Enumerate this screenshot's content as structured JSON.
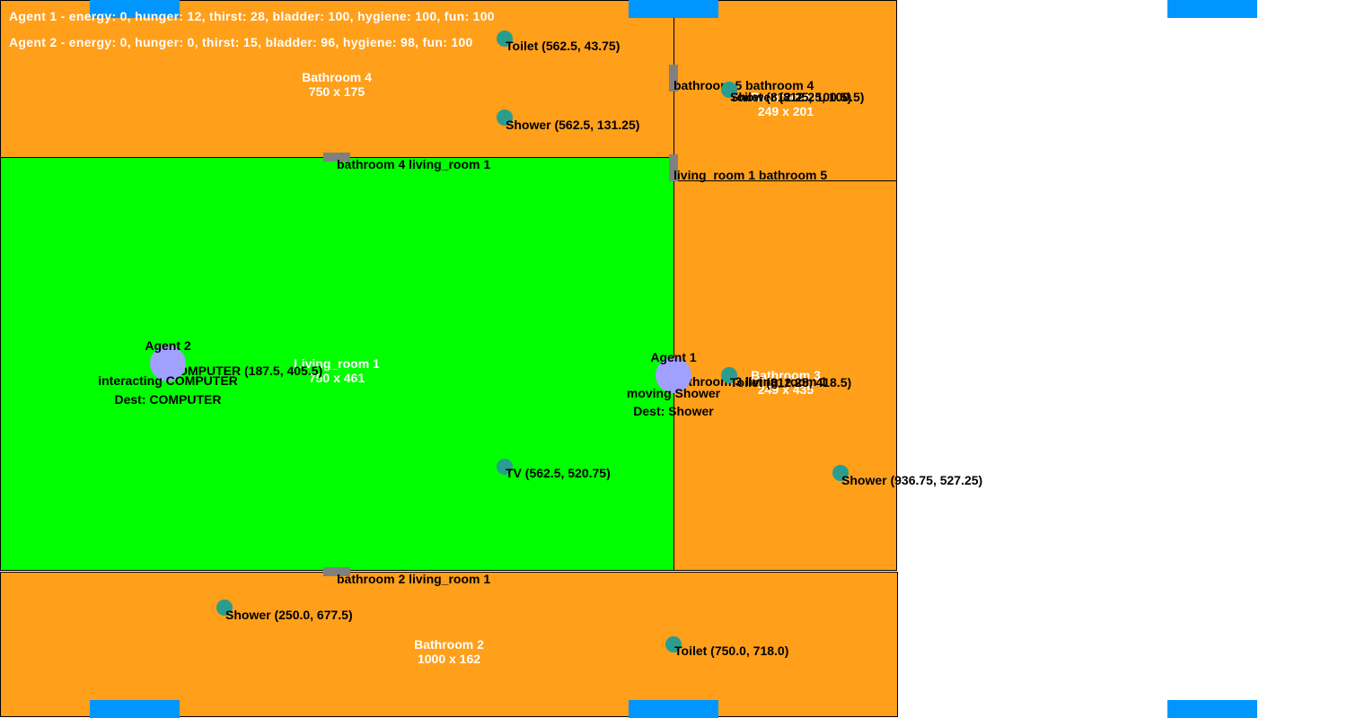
{
  "colors": {
    "bathroom": "#ff9f1a",
    "living_room": "#00ff00",
    "object": "#2a9d8f",
    "agent": "#a0a0ff",
    "door": "#808080",
    "window": "#0096ff"
  },
  "status": {
    "agent1": "Agent 1 - energy: 0, hunger: 12, thirst: 28, bladder: 100, hygiene: 100, fun: 100",
    "agent2": "Agent 2 - energy: 0, hunger: 0, thirst: 15, bladder: 96, hygiene: 98, fun: 100"
  },
  "rooms": {
    "bathroom4": {
      "name": "Bathroom 4",
      "size": "750 x 175"
    },
    "bathroom5": {
      "name": "Bathroom 5",
      "size": "249 x 201"
    },
    "living_room1": {
      "name": "Living_room 1",
      "size": "750 x 461"
    },
    "bathroom3": {
      "name": "Bathroom 3",
      "size": "249 x 435"
    },
    "bathroom2": {
      "name": "Bathroom 2",
      "size": "1000 x 162"
    }
  },
  "doors": {
    "d1": "bathroom 5 bathroom 4",
    "d2": "bathroom 4 living_room 1",
    "d3": "living_room 1 bathroom 5",
    "d4": "bathroom 3 living_room 1",
    "d5": "bathroom 2 living_room 1"
  },
  "objects": {
    "toilet_b4": "Toilet (562.5, 43.75)",
    "shower_b4": "Shower (562.5, 131.25)",
    "toilet_b5": "Toilet (812.25, 100.5)",
    "shower_b5": "Shower (812.25, 100.5)",
    "computer": "COMPUTER (187.5, 405.5)",
    "tv": "TV (562.5, 520.75)",
    "toilet_b3": "Toilet (812.25, 418.5)",
    "shower_b3": "Shower (936.75, 527.25)",
    "shower_b2": "Shower (250.0, 677.5)",
    "toilet_b2": "Toilet (750.0, 718.0)"
  },
  "agents": {
    "agent1": {
      "name": "Agent 1",
      "action": "moving Shower",
      "dest": "Dest: Shower"
    },
    "agent2": {
      "name": "Agent 2",
      "action": "interacting COMPUTER",
      "dest": "Dest: COMPUTER"
    }
  }
}
